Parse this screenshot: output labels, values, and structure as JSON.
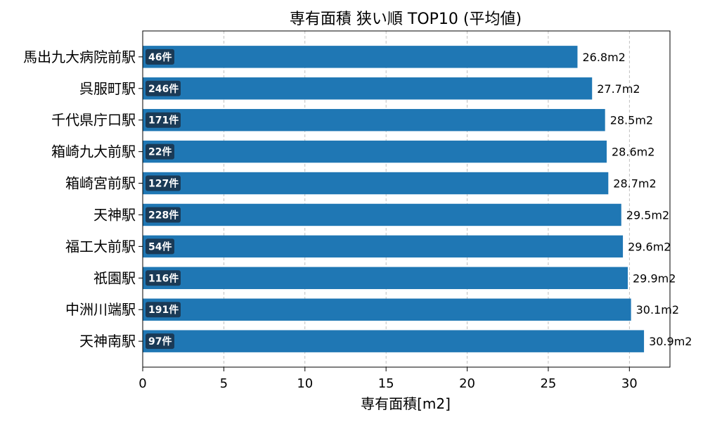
{
  "chart_data": {
    "type": "bar",
    "orientation": "horizontal",
    "title": "専有面積 狭い順 TOP10 (平均値)",
    "xlabel": "専有面積[m2]",
    "ylabel": "",
    "xlim": [
      0,
      32.5
    ],
    "xticks": [
      0,
      5,
      10,
      15,
      20,
      25,
      30
    ],
    "grid": "x-dashed",
    "categories": [
      "馬出九大病院前駅",
      "呉服町駅",
      "千代県庁口駅",
      "箱崎九大前駅",
      "箱崎宮前駅",
      "天神駅",
      "福工大前駅",
      "祇園駅",
      "中洲川端駅",
      "天神南駅"
    ],
    "values": [
      26.8,
      27.7,
      28.5,
      28.6,
      28.7,
      29.5,
      29.6,
      29.9,
      30.1,
      30.9
    ],
    "value_labels": [
      "26.8m2",
      "27.7m2",
      "28.5m2",
      "28.6m2",
      "28.7m2",
      "29.5m2",
      "29.6m2",
      "29.9m2",
      "30.1m2",
      "30.9m2"
    ],
    "counts": [
      "46件",
      "246件",
      "171件",
      "22件",
      "127件",
      "228件",
      "54件",
      "116件",
      "191件",
      "97件"
    ],
    "bar_color": "#1f77b4",
    "badge_color": "#1a3a56"
  }
}
